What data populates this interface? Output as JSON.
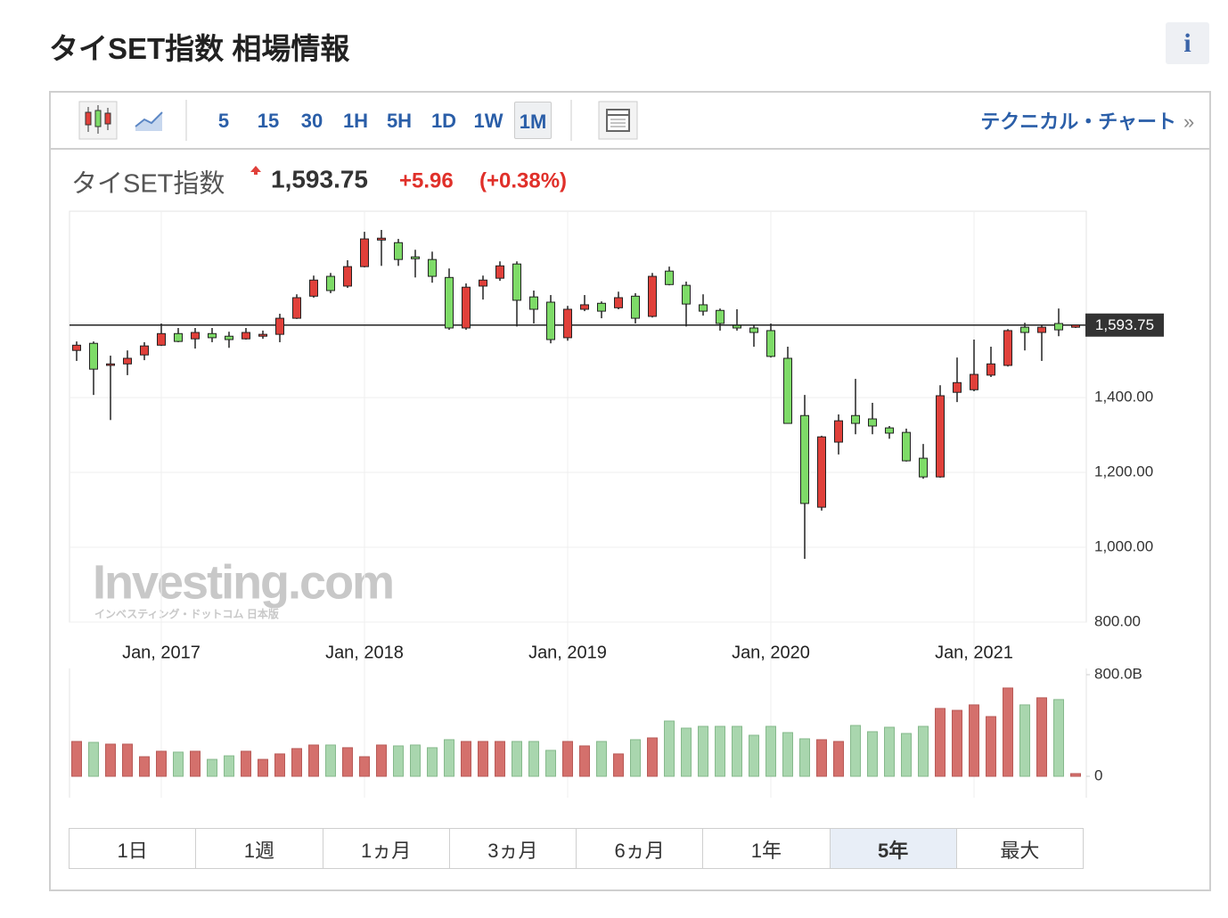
{
  "header": {
    "title": "タイSET指数 相場情報",
    "info": "i"
  },
  "toolbar": {
    "intervals": [
      "5",
      "15",
      "30",
      "1H",
      "5H",
      "1D",
      "1W",
      "1M"
    ],
    "selected": "1M",
    "link": "テクニカル・チャート",
    "link_arrow": "»"
  },
  "quote": {
    "name": "タイSET指数",
    "change": "+5.96",
    "change_pct": "(+0.38%)"
  },
  "watermark": {
    "logo": "Investing.com",
    "sub": "インベスティング・ドットコム 日本版"
  },
  "chart_data": [
    {
      "type": "candlestick",
      "categories": [
        null,
        null,
        null,
        null,
        null,
        "Jan, 2017",
        null,
        null,
        null,
        null,
        null,
        null,
        null,
        null,
        null,
        null,
        null,
        "Jan, 2018",
        null,
        null,
        null,
        null,
        null,
        null,
        null,
        null,
        null,
        null,
        null,
        "Jan, 2019",
        null,
        null,
        null,
        null,
        null,
        null,
        null,
        null,
        null,
        null,
        null,
        "Jan, 2020",
        null,
        null,
        null,
        null,
        null,
        null,
        null,
        null,
        null,
        null,
        null,
        "Jan, 2021",
        null,
        null,
        null,
        null,
        null,
        null
      ],
      "open": [
        1526,
        1545,
        1486,
        1490,
        1514,
        1540,
        1571,
        1557,
        1571,
        1564,
        1557,
        1564,
        1569,
        1612,
        1671,
        1724,
        1698,
        1750,
        1821,
        1814,
        1776,
        1769,
        1721,
        1586,
        1698,
        1719,
        1757,
        1669,
        1655,
        1560,
        1636,
        1652,
        1640,
        1671,
        1617,
        1738,
        1700,
        1648,
        1633,
        1593,
        1586,
        1579,
        1505,
        1352,
        1107,
        1281,
        1352,
        1343,
        1319,
        1307,
        1238,
        1188,
        1414,
        1421,
        1460,
        1486,
        1588,
        1574,
        1598,
        1588
      ],
      "high": [
        1550,
        1550,
        1512,
        1526,
        1548,
        1598,
        1586,
        1586,
        1586,
        1576,
        1586,
        1579,
        1624,
        1676,
        1726,
        1733,
        1767,
        1843,
        1848,
        1824,
        1795,
        1790,
        1745,
        1705,
        1726,
        1764,
        1764,
        1686,
        1674,
        1645,
        1674,
        1657,
        1683,
        1679,
        1733,
        1750,
        1710,
        1676,
        1638,
        1636,
        1595,
        1598,
        1536,
        1407,
        1298,
        1355,
        1450,
        1386,
        1324,
        1317,
        1276,
        1433,
        1507,
        1555,
        1536,
        1583,
        1600,
        1595,
        1638,
        1595
      ],
      "low": [
        1498,
        1407,
        1340,
        1460,
        1500,
        1538,
        1548,
        1531,
        1548,
        1533,
        1555,
        1557,
        1548,
        1610,
        1667,
        1679,
        1693,
        1748,
        1752,
        1752,
        1721,
        1707,
        1581,
        1581,
        1662,
        1712,
        1590,
        1598,
        1545,
        1552,
        1631,
        1612,
        1636,
        1598,
        1614,
        1700,
        1590,
        1619,
        1579,
        1579,
        1536,
        1507,
        1331,
        969,
        1098,
        1248,
        1302,
        1302,
        1290,
        1229,
        1183,
        1186,
        1388,
        1417,
        1455,
        1483,
        1526,
        1498,
        1564,
        1586
      ],
      "close": [
        1540,
        1476,
        1490,
        1505,
        1538,
        1571,
        1550,
        1574,
        1560,
        1555,
        1574,
        1569,
        1612,
        1667,
        1714,
        1686,
        1750,
        1824,
        1826,
        1769,
        1771,
        1724,
        1586,
        1695,
        1714,
        1752,
        1660,
        1636,
        1555,
        1636,
        1648,
        1631,
        1667,
        1612,
        1724,
        1702,
        1650,
        1631,
        1598,
        1586,
        1574,
        1510,
        1331,
        1117,
        1295,
        1338,
        1331,
        1324,
        1305,
        1231,
        1188,
        1405,
        1440,
        1462,
        1490,
        1579,
        1574,
        1588,
        1581,
        1593.75
      ],
      "up_color": "#e0403a",
      "down_color": "#7edb68",
      "ylim": [
        800,
        1898
      ],
      "yticks": [
        {
          "value": 800,
          "label": "800.00"
        },
        {
          "value": 1000,
          "label": "1,000.00"
        },
        {
          "value": 1200,
          "label": "1,200.00"
        },
        {
          "value": 1400,
          "label": "1,400.00"
        }
      ],
      "last_price": {
        "value": 1593.75,
        "label": "1,593.75"
      },
      "grid": true
    },
    {
      "type": "bar",
      "values": [
        274,
        267,
        253,
        253,
        154,
        197,
        190,
        197,
        133,
        161,
        197,
        133,
        176,
        218,
        246,
        246,
        225,
        154,
        246,
        239,
        246,
        225,
        288,
        274,
        274,
        274,
        274,
        274,
        204,
        274,
        239,
        274,
        176,
        288,
        302,
        435,
        379,
        393,
        393,
        393,
        323,
        393,
        344,
        295,
        288,
        274,
        400,
        351,
        386,
        337,
        393,
        534,
        519,
        562,
        470,
        695,
        562,
        618,
        604,
        21
      ],
      "up_color": "#d4706c",
      "down_color": "#a9d6ae",
      "ylim": [
        0,
        849
      ],
      "yticks": [
        0,
        {
          "value": 800,
          "label": "800.0B"
        }
      ]
    }
  ],
  "ranges": [
    "1日",
    "1週",
    "1ヵ月",
    "3ヵ月",
    "6ヵ月",
    "1年",
    "5年",
    "最大"
  ],
  "selected_range": "5年"
}
